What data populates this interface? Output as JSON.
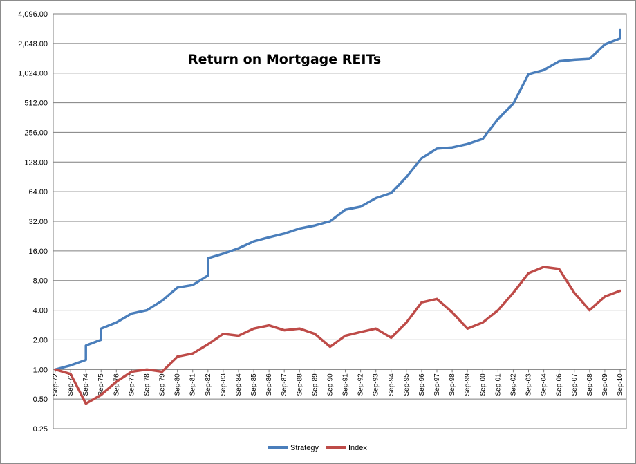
{
  "chart_data": {
    "type": "line",
    "title": "Return on Mortgage REITs",
    "xlabel": "",
    "ylabel": "",
    "y_scale": "log2",
    "ylim": [
      0.25,
      4096
    ],
    "grid": true,
    "legend_position": "bottom",
    "y_ticks": [
      "4,096.00",
      "2,048.00",
      "1,024.00",
      "512.00",
      "256.00",
      "128.00",
      "64.00",
      "32.00",
      "16.00",
      "8.00",
      "4.00",
      "2.00",
      "1.00",
      "0.50",
      "0.25"
    ],
    "x_ticks": [
      "Sep-72",
      "Sep-73",
      "Sep-74",
      "Sep-75",
      "Sep-76",
      "Sep-77",
      "Sep-78",
      "Sep-79",
      "Sep-80",
      "Sep-81",
      "Sep-82",
      "Sep-83",
      "Sep-84",
      "Sep-85",
      "Sep-86",
      "Sep-87",
      "Sep-88",
      "Sep-89",
      "Sep-90",
      "Sep-91",
      "Sep-92",
      "Sep-93",
      "Sep-94",
      "Sep-95",
      "Sep-96",
      "Sep-97",
      "Sep-98",
      "Sep-99",
      "Sep-00",
      "Sep-01",
      "Sep-02",
      "Sep-03",
      "Sep-04",
      "Sep-06",
      "Sep-07",
      "Sep-08",
      "Sep-09",
      "Sep-10"
    ],
    "series": [
      {
        "name": "Strategy",
        "color": "#4a7ebb",
        "points": [
          [
            "Sep-72",
            1.0
          ],
          [
            "Sep-73",
            1.1
          ],
          [
            "Sep-74",
            1.25
          ],
          [
            "Sep-74",
            1.75
          ],
          [
            "Sep-75",
            2.0
          ],
          [
            "Sep-75",
            2.6
          ],
          [
            "Sep-76",
            3.0
          ],
          [
            "Sep-77",
            3.7
          ],
          [
            "Sep-78",
            4.0
          ],
          [
            "Sep-79",
            5.0
          ],
          [
            "Sep-80",
            6.8
          ],
          [
            "Sep-81",
            7.2
          ],
          [
            "Sep-82",
            9.0
          ],
          [
            "Sep-82",
            13.5
          ],
          [
            "Sep-83",
            15.0
          ],
          [
            "Sep-84",
            17.0
          ],
          [
            "Sep-85",
            20.0
          ],
          [
            "Sep-86",
            22.0
          ],
          [
            "Sep-87",
            24.0
          ],
          [
            "Sep-88",
            27.0
          ],
          [
            "Sep-89",
            29.0
          ],
          [
            "Sep-90",
            32.0
          ],
          [
            "Sep-91",
            42.0
          ],
          [
            "Sep-92",
            45.0
          ],
          [
            "Sep-93",
            55.0
          ],
          [
            "Sep-94",
            62.0
          ],
          [
            "Sep-95",
            90.0
          ],
          [
            "Sep-96",
            140.0
          ],
          [
            "Sep-97",
            175.0
          ],
          [
            "Sep-98",
            180.0
          ],
          [
            "Sep-99",
            195.0
          ],
          [
            "Sep-00",
            220.0
          ],
          [
            "Sep-01",
            350.0
          ],
          [
            "Sep-02",
            500.0
          ],
          [
            "Sep-03",
            1000.0
          ],
          [
            "Sep-04",
            1100.0
          ],
          [
            "Sep-06",
            1350.0
          ],
          [
            "Sep-07",
            1400.0
          ],
          [
            "Sep-08",
            1430.0
          ],
          [
            "Sep-09",
            2000.0
          ],
          [
            "Sep-10",
            2300.0
          ],
          [
            "Sep-10",
            2800.0
          ]
        ]
      },
      {
        "name": "Index",
        "color": "#be4b48",
        "points": [
          [
            "Sep-72",
            1.0
          ],
          [
            "Sep-73",
            0.9
          ],
          [
            "Sep-74",
            0.45
          ],
          [
            "Sep-75",
            0.55
          ],
          [
            "Sep-76",
            0.75
          ],
          [
            "Sep-77",
            0.95
          ],
          [
            "Sep-78",
            1.0
          ],
          [
            "Sep-79",
            0.95
          ],
          [
            "Sep-80",
            1.35
          ],
          [
            "Sep-81",
            1.45
          ],
          [
            "Sep-82",
            1.8
          ],
          [
            "Sep-83",
            2.3
          ],
          [
            "Sep-84",
            2.2
          ],
          [
            "Sep-85",
            2.6
          ],
          [
            "Sep-86",
            2.8
          ],
          [
            "Sep-87",
            2.5
          ],
          [
            "Sep-88",
            2.6
          ],
          [
            "Sep-89",
            2.3
          ],
          [
            "Sep-90",
            1.7
          ],
          [
            "Sep-91",
            2.2
          ],
          [
            "Sep-92",
            2.4
          ],
          [
            "Sep-93",
            2.6
          ],
          [
            "Sep-94",
            2.1
          ],
          [
            "Sep-95",
            3.0
          ],
          [
            "Sep-96",
            4.8
          ],
          [
            "Sep-97",
            5.2
          ],
          [
            "Sep-98",
            3.8
          ],
          [
            "Sep-99",
            2.6
          ],
          [
            "Sep-00",
            3.0
          ],
          [
            "Sep-01",
            4.0
          ],
          [
            "Sep-02",
            6.0
          ],
          [
            "Sep-03",
            9.5
          ],
          [
            "Sep-04",
            11.0
          ],
          [
            "Sep-06",
            10.5
          ],
          [
            "Sep-07",
            6.0
          ],
          [
            "Sep-08",
            4.0
          ],
          [
            "Sep-09",
            5.5
          ],
          [
            "Sep-10",
            6.3
          ]
        ]
      }
    ]
  }
}
